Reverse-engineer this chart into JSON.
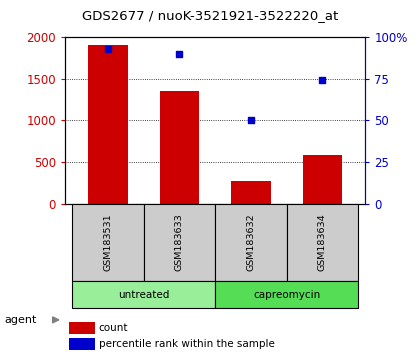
{
  "title": "GDS2677 / nuoK-3521921-3522220_at",
  "samples": [
    "GSM183531",
    "GSM183633",
    "GSM183632",
    "GSM183634"
  ],
  "counts": [
    1900,
    1350,
    270,
    580
  ],
  "percentiles": [
    93,
    90,
    50,
    74
  ],
  "bar_color": "#cc0000",
  "dot_color": "#0000cc",
  "left_ylim": [
    0,
    2000
  ],
  "right_ylim": [
    0,
    100
  ],
  "left_yticks": [
    0,
    500,
    1000,
    1500,
    2000
  ],
  "right_yticks": [
    0,
    25,
    50,
    75,
    100
  ],
  "right_yticklabels": [
    "0",
    "25",
    "50",
    "75",
    "100%"
  ],
  "left_ycolor": "#cc0000",
  "right_ycolor": "#0000cc",
  "sample_bg_color": "#cccccc",
  "group_info": [
    {
      "label": "untreated",
      "indices": [
        0,
        1
      ],
      "color": "#99ee99"
    },
    {
      "label": "capreomycin",
      "indices": [
        2,
        3
      ],
      "color": "#55dd55"
    }
  ],
  "background_color": "#ffffff",
  "title_fontsize": 9.5,
  "bar_width": 0.55
}
